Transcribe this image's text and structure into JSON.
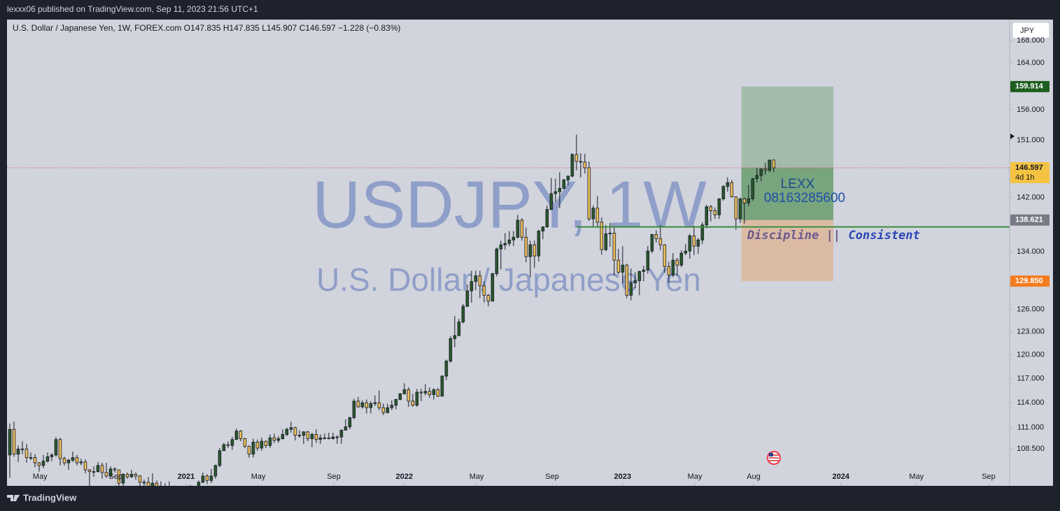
{
  "publisher": "lexxx06 published on TradingView.com, Sep 11, 2023 21:56 UTC+1",
  "footer": "TradingView",
  "chart_data": {
    "type": "candlestick",
    "header": {
      "symbol": "U.S. Dollar / Japanese Yen, 1W, FOREX.com",
      "ohlc_letters": [
        "O",
        "H",
        "L",
        "C"
      ],
      "open": 147.835,
      "high": 147.835,
      "low": 145.907,
      "close": 146.597,
      "change": "−1.228 (−0.83%)"
    },
    "watermark": [
      "USDJPY, 1W",
      "U.S. Dollar / Japanese Yen"
    ],
    "currency_button": "JPY",
    "log_scale": true,
    "grid": false,
    "up_color": "#2b5a2e",
    "down_color": "#f3c25e",
    "ylim": [
      104.3,
      171.8
    ],
    "yticks": [
      {
        "value": 168,
        "label": "168.000"
      },
      {
        "value": 164,
        "label": "164.000"
      },
      {
        "value": 156,
        "label": "156.000"
      },
      {
        "value": 151,
        "label": "151.000"
      },
      {
        "value": 142,
        "label": "142.000"
      },
      {
        "value": 134,
        "label": "134.000"
      },
      {
        "value": 126,
        "label": "126.000"
      },
      {
        "value": 123,
        "label": "123.000"
      },
      {
        "value": 120,
        "label": "120.000"
      },
      {
        "value": 117,
        "label": "117.000"
      },
      {
        "value": 114,
        "label": "114.000"
      },
      {
        "value": 111,
        "label": "111.000"
      },
      {
        "value": 108.5,
        "label": "108.500"
      }
    ],
    "xlim": [
      -0.667,
      238.2
    ],
    "xticks": [
      {
        "value": 7.2,
        "label": "May"
      },
      {
        "value": 25.2,
        "label": "Sep"
      },
      {
        "value": 42,
        "label": "2021"
      },
      {
        "value": 59.2,
        "label": "May"
      },
      {
        "value": 77.2,
        "label": "Sep"
      },
      {
        "value": 94,
        "label": "2022"
      },
      {
        "value": 111.2,
        "label": "May"
      },
      {
        "value": 129.2,
        "label": "Sep"
      },
      {
        "value": 146,
        "label": "2023"
      },
      {
        "value": 163.2,
        "label": "May"
      },
      {
        "value": 177.2,
        "label": "Aug"
      },
      {
        "value": 198,
        "label": "2024"
      },
      {
        "value": 216,
        "label": "May"
      },
      {
        "value": 233.2,
        "label": "Sep"
      }
    ],
    "open": [
      107.8,
      110.8,
      107.9,
      108.5,
      108.5,
      107.5,
      107.5,
      106.9,
      106.6,
      107.1,
      107.6,
      107.8,
      109.6,
      107.4,
      106.9,
      107.2,
      107.5,
      106.9,
      107.0,
      106.1,
      105.9,
      105.9,
      106.6,
      105.8,
      105.4,
      106.2,
      106.1,
      104.6,
      105.6,
      105.3,
      105.6,
      105.4,
      104.7,
      104.7,
      103.4,
      104.6,
      103.8,
      104.1,
      104.2,
      104.0,
      103.3,
      103.6,
      103.2,
      103.9,
      103.9,
      103.8,
      104.7,
      105.4,
      104.9,
      105.4,
      106.6,
      108.3,
      109.0,
      108.9,
      109.6,
      110.6,
      109.7,
      108.8,
      107.9,
      109.3,
      108.6,
      109.4,
      108.9,
      109.8,
      109.5,
      109.7,
      110.2,
      110.8,
      111.0,
      110.1,
      110.1,
      110.5,
      109.7,
      110.2,
      109.6,
      109.8,
      109.8,
      109.7,
      109.9,
      109.9,
      110.7,
      111.1,
      112.2,
      114.2,
      113.5,
      114.0,
      113.4,
      113.9,
      114.0,
      113.4,
      112.8,
      113.4,
      113.7,
      114.4,
      115.1,
      115.6,
      114.2,
      113.7,
      115.3,
      115.2,
      115.4,
      115.0,
      115.6,
      114.8,
      117.3,
      119.2,
      122.1,
      122.5,
      124.3,
      126.4,
      128.5,
      129.8,
      130.6,
      129.2,
      127.9,
      127.1,
      130.9,
      134.4,
      135.0,
      135.2,
      135.7,
      136.1,
      138.6,
      136.1,
      133.3,
      135.0,
      133.4,
      137.0,
      137.6,
      140.2,
      142.6,
      142.9,
      143.4,
      144.7,
      145.3,
      148.7,
      147.6,
      147.5,
      146.6,
      138.8,
      140.4,
      138.3,
      134.3,
      136.6,
      136.7,
      132.8,
      131.1,
      132.1,
      127.9,
      129.6,
      129.9,
      131.2,
      131.4,
      134.1,
      136.5,
      135.9,
      135.0,
      131.9,
      130.7,
      132.8,
      132.1,
      133.8,
      134.1,
      136.3,
      134.8,
      135.7,
      137.9,
      140.6,
      140.0,
      139.4,
      141.8,
      143.7,
      144.3,
      142.1,
      138.8,
      141.8,
      141.2,
      141.8,
      144.9,
      145.4,
      146.4,
      146.2,
      147.835
    ],
    "high": [
      111.5,
      111.7,
      108.9,
      109.4,
      109.1,
      108.1,
      107.9,
      107.0,
      107.8,
      108.1,
      108.0,
      109.9,
      109.8,
      107.6,
      107.4,
      108.2,
      107.8,
      107.4,
      107.3,
      106.2,
      106.5,
      107.0,
      106.9,
      106.9,
      106.5,
      106.4,
      106.1,
      105.7,
      105.8,
      106.1,
      105.8,
      105.5,
      105.0,
      105.3,
      105.7,
      104.9,
      104.8,
      104.6,
      104.8,
      104.2,
      103.9,
      103.9,
      104.1,
      104.4,
      104.1,
      104.9,
      105.8,
      105.6,
      106.2,
      106.7,
      108.6,
      109.2,
      109.4,
      109.9,
      110.9,
      110.7,
      109.8,
      108.9,
      109.7,
      109.6,
      109.8,
      109.5,
      110.2,
      110.3,
      110.0,
      110.8,
      111.0,
      111.7,
      111.1,
      110.7,
      110.6,
      110.6,
      110.4,
      110.8,
      110.2,
      110.3,
      110.4,
      110.4,
      110.1,
      110.8,
      112.0,
      112.3,
      114.5,
      114.7,
      114.3,
      114.4,
      114.2,
      114.9,
      115.5,
      113.9,
      113.9,
      114.3,
      114.5,
      115.2,
      116.4,
      115.9,
      115.1,
      115.7,
      115.7,
      116.3,
      115.9,
      115.8,
      115.8,
      117.4,
      119.4,
      122.4,
      125.1,
      124.7,
      126.7,
      129.4,
      131.3,
      131.3,
      131.3,
      129.8,
      128.1,
      131.0,
      134.6,
      135.6,
      136.7,
      137.0,
      137.0,
      139.4,
      138.9,
      137.5,
      135.6,
      135.6,
      137.2,
      137.7,
      140.8,
      145.0,
      144.9,
      145.9,
      144.9,
      145.4,
      148.9,
      151.9,
      148.9,
      148.8,
      147.6,
      140.8,
      142.2,
      139.0,
      137.9,
      138.2,
      137.5,
      134.4,
      134.8,
      132.3,
      131.6,
      131.1,
      131.3,
      132.0,
      134.8,
      136.6,
      137.1,
      137.9,
      135.1,
      132.6,
      133.8,
      133.1,
      134.2,
      135.1,
      136.6,
      137.8,
      136.0,
      138.3,
      140.9,
      140.9,
      140.5,
      141.9,
      143.9,
      145.1,
      144.7,
      142.2,
      142.0,
      142.0,
      143.9,
      145.0,
      146.6,
      146.5,
      147.4,
      147.9,
      147.835
    ],
    "low": [
      105.2,
      107.6,
      107.0,
      107.9,
      106.9,
      107.2,
      106.4,
      105.9,
      106.3,
      106.9,
      107.1,
      107.6,
      106.6,
      106.6,
      106.1,
      107.0,
      106.6,
      106.6,
      105.7,
      104.2,
      105.3,
      105.8,
      105.1,
      105.2,
      105.2,
      105.8,
      104.3,
      104.0,
      105.1,
      105.2,
      105.0,
      104.3,
      104.0,
      103.2,
      103.2,
      103.7,
      103.7,
      103.7,
      103.9,
      102.9,
      102.9,
      103.0,
      102.6,
      103.5,
      103.3,
      103.5,
      104.6,
      104.5,
      104.6,
      105.1,
      106.4,
      108.3,
      108.6,
      108.4,
      109.6,
      109.4,
      108.6,
      107.5,
      107.5,
      108.3,
      108.3,
      108.6,
      108.6,
      109.2,
      109.2,
      109.6,
      110.0,
      110.4,
      109.5,
      109.8,
      109.1,
      109.4,
      108.7,
      109.2,
      109.1,
      109.6,
      109.6,
      109.6,
      109.1,
      109.1,
      110.7,
      110.8,
      112.0,
      113.4,
      113.3,
      112.7,
      112.7,
      113.6,
      113.1,
      112.5,
      112.7,
      113.1,
      113.2,
      114.3,
      115.0,
      113.5,
      113.5,
      113.5,
      114.2,
      114.9,
      114.6,
      114.4,
      114.7,
      114.8,
      116.8,
      119.0,
      121.0,
      122.4,
      124.1,
      126.3,
      126.9,
      128.6,
      127.5,
      126.9,
      126.4,
      127.1,
      130.5,
      131.5,
      134.3,
      134.8,
      134.8,
      135.9,
      135.6,
      132.5,
      130.4,
      131.7,
      132.6,
      135.8,
      137.5,
      140.1,
      141.3,
      140.4,
      143.3,
      143.9,
      145.1,
      146.2,
      145.1,
      145.7,
      138.5,
      137.7,
      137.5,
      133.6,
      134.1,
      134.7,
      130.6,
      130.8,
      129.5,
      127.5,
      127.2,
      128.9,
      127.9,
      129.8,
      130.9,
      133.8,
      135.3,
      134.2,
      131.0,
      129.6,
      130.4,
      130.6,
      131.8,
      133.5,
      133.0,
      133.5,
      133.7,
      135.1,
      137.4,
      138.4,
      138.8,
      138.8,
      141.5,
      142.9,
      142.0,
      137.2,
      138.2,
      138.1,
      140.7,
      141.5,
      144.3,
      144.5,
      145.5,
      145.9,
      145.907
    ],
    "close": [
      110.8,
      107.9,
      108.5,
      108.5,
      107.5,
      107.5,
      106.9,
      106.6,
      107.1,
      107.6,
      107.8,
      109.6,
      107.4,
      106.9,
      107.2,
      107.5,
      106.9,
      107.0,
      106.1,
      105.9,
      105.9,
      106.6,
      105.8,
      105.4,
      106.2,
      106.1,
      104.6,
      105.6,
      105.3,
      105.6,
      105.4,
      104.7,
      104.7,
      103.4,
      104.6,
      103.8,
      104.1,
      104.2,
      104.0,
      103.3,
      103.6,
      103.2,
      103.9,
      103.9,
      103.8,
      104.7,
      105.4,
      104.9,
      105.4,
      106.6,
      108.3,
      109.0,
      108.9,
      109.6,
      110.6,
      109.7,
      108.8,
      107.9,
      109.3,
      108.6,
      109.4,
      108.9,
      109.8,
      109.5,
      109.7,
      110.2,
      110.8,
      111.0,
      110.1,
      110.1,
      110.5,
      109.7,
      110.2,
      109.6,
      109.8,
      109.8,
      109.7,
      109.9,
      109.9,
      110.7,
      111.1,
      112.2,
      114.2,
      113.5,
      114.0,
      113.4,
      113.9,
      114.0,
      113.4,
      112.8,
      113.4,
      113.7,
      114.4,
      115.1,
      115.6,
      114.2,
      113.7,
      115.3,
      115.2,
      115.4,
      115.0,
      115.6,
      114.8,
      117.3,
      119.2,
      122.1,
      122.5,
      124.3,
      126.4,
      128.5,
      129.8,
      130.6,
      129.2,
      127.9,
      127.1,
      130.9,
      134.4,
      135.0,
      135.2,
      135.7,
      136.1,
      138.6,
      136.1,
      133.3,
      135.0,
      133.4,
      137.0,
      137.6,
      140.2,
      142.6,
      142.9,
      143.4,
      144.7,
      145.3,
      148.7,
      147.6,
      147.5,
      146.6,
      138.8,
      140.4,
      138.3,
      134.3,
      136.6,
      136.7,
      132.8,
      131.1,
      132.1,
      127.9,
      129.6,
      129.9,
      131.2,
      131.4,
      134.1,
      136.5,
      135.9,
      135.0,
      131.9,
      130.7,
      132.8,
      132.1,
      133.8,
      134.1,
      136.3,
      134.8,
      135.7,
      137.9,
      140.6,
      140.0,
      139.4,
      141.8,
      143.7,
      144.3,
      142.1,
      138.8,
      141.8,
      141.2,
      141.8,
      144.9,
      145.4,
      146.4,
      146.2,
      147.8,
      146.597
    ],
    "position": {
      "x_start": 174.3,
      "x_end": 196.2,
      "target": 159.914,
      "entry": 138.621,
      "stop": 129.85
    },
    "support": {
      "value": 137.6,
      "x_start": 135,
      "color": "#3d8c3d"
    },
    "price_labels": [
      {
        "value": 159.914,
        "color": "#1e5e20"
      },
      {
        "value": 146.597,
        "countdown": "4d 1h",
        "color": "#f5c342"
      },
      {
        "value": 138.621,
        "color": "#787b86"
      },
      {
        "value": 129.85,
        "label": "129.850",
        "color": "#f57c1f"
      }
    ],
    "annotations": {
      "name": "LEXX",
      "phone": "08163285600",
      "motto": [
        "Discipline ||",
        "Consistent"
      ]
    }
  }
}
